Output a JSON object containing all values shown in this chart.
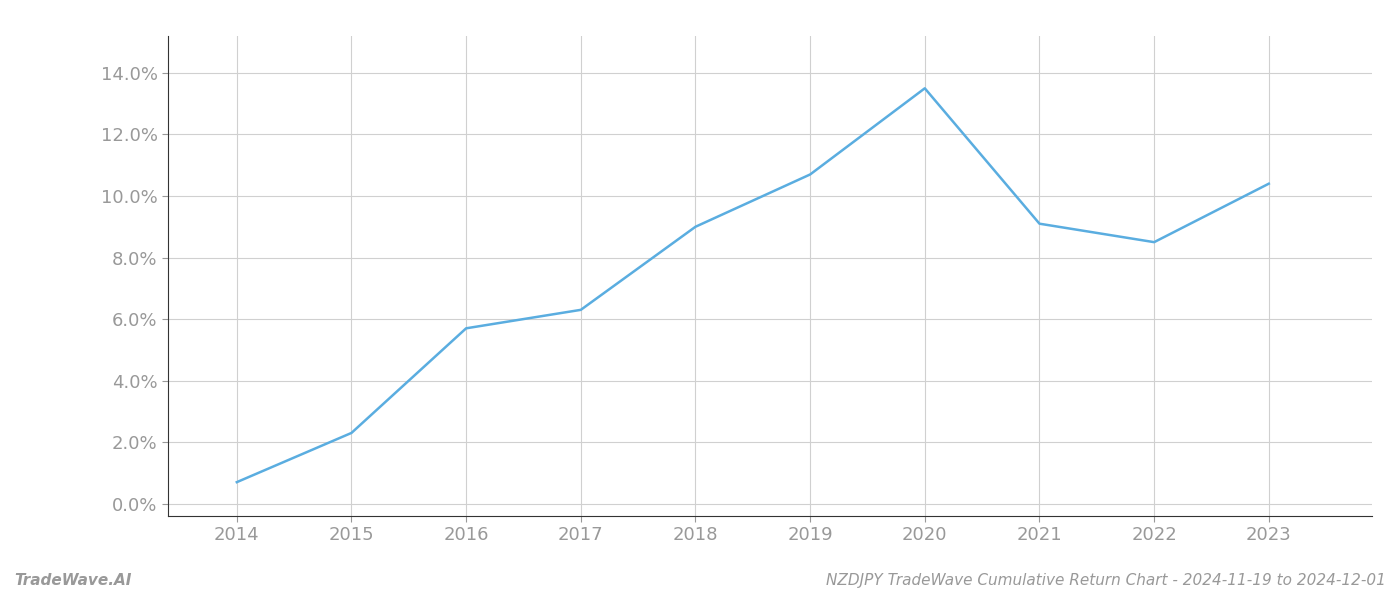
{
  "x_values": [
    2014,
    2015,
    2016,
    2017,
    2018,
    2019,
    2020,
    2021,
    2022,
    2023
  ],
  "y_values": [
    0.007,
    0.023,
    0.057,
    0.063,
    0.09,
    0.107,
    0.135,
    0.091,
    0.085,
    0.104
  ],
  "line_color": "#5aade0",
  "line_width": 1.8,
  "background_color": "#ffffff",
  "grid_color": "#d0d0d0",
  "xlim": [
    2013.4,
    2023.9
  ],
  "ylim": [
    -0.004,
    0.152
  ],
  "yticks": [
    0.0,
    0.02,
    0.04,
    0.06,
    0.08,
    0.1,
    0.12,
    0.14
  ],
  "xticks": [
    2014,
    2015,
    2016,
    2017,
    2018,
    2019,
    2020,
    2021,
    2022,
    2023
  ],
  "footer_left": "TradeWave.AI",
  "footer_right": "NZDJPY TradeWave Cumulative Return Chart - 2024-11-19 to 2024-12-01",
  "tick_fontsize": 13,
  "footer_fontsize": 11,
  "tick_color": "#999999",
  "footer_color": "#999999",
  "spine_color": "#333333"
}
